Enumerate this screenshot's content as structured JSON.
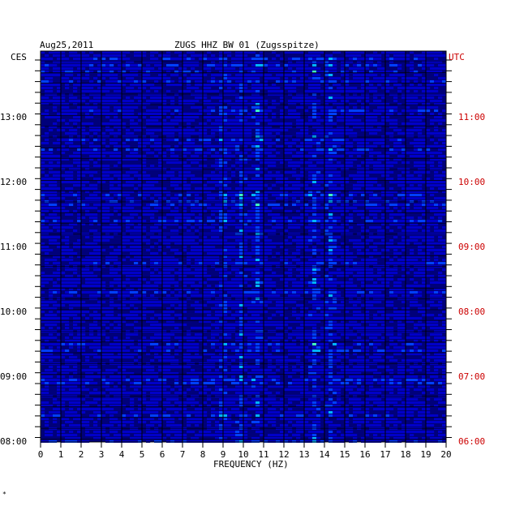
{
  "chart_data": {
    "type": "heatmap",
    "title": "ZUGS HHZ BW 01 (Zugsspitze)",
    "date": "Aug25,2011",
    "xlabel": "FREQUENCY (HZ)",
    "x_ticks": [
      "0",
      "1",
      "2",
      "3",
      "4",
      "5",
      "6",
      "7",
      "8",
      "9",
      "10",
      "11",
      "12",
      "13",
      "14",
      "15",
      "16",
      "17",
      "18",
      "19",
      "20"
    ],
    "xlim": [
      0,
      20
    ],
    "left_axis_label": "CES",
    "right_axis_label": "UTC",
    "left_time_ticks": [
      "13:00",
      "12:00",
      "11:00",
      "10:00",
      "09:00",
      "08:00"
    ],
    "right_time_ticks": [
      "11:00",
      "10:00",
      "09:00",
      "08:00",
      "07:00",
      "06:00"
    ],
    "time_range_local": [
      "08:00",
      "13:55"
    ],
    "colormap": [
      "#00007a",
      "#0000c8",
      "#0040ff",
      "#00b4ff",
      "#40ffc0",
      "#ffff00",
      "#ff0000"
    ],
    "grid": true,
    "prominent_bands_hz": [
      9.0,
      9.9,
      10.7,
      13.5,
      14.3
    ]
  },
  "footnote": "*"
}
